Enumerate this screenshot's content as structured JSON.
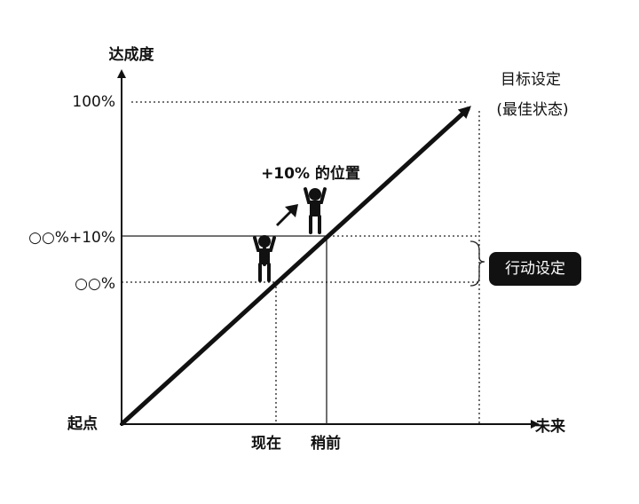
{
  "axes": {
    "y_title": "达成度",
    "x_title": "未来",
    "origin": "起点"
  },
  "y_labels": [
    "100%",
    "○○%+10%",
    "○○%"
  ],
  "x_labels": [
    "现在",
    "稍前"
  ],
  "goal": {
    "title": "目标设定",
    "note": "(最佳状态)"
  },
  "step_label": "+10% 的位置",
  "action_label": "行动设定"
}
